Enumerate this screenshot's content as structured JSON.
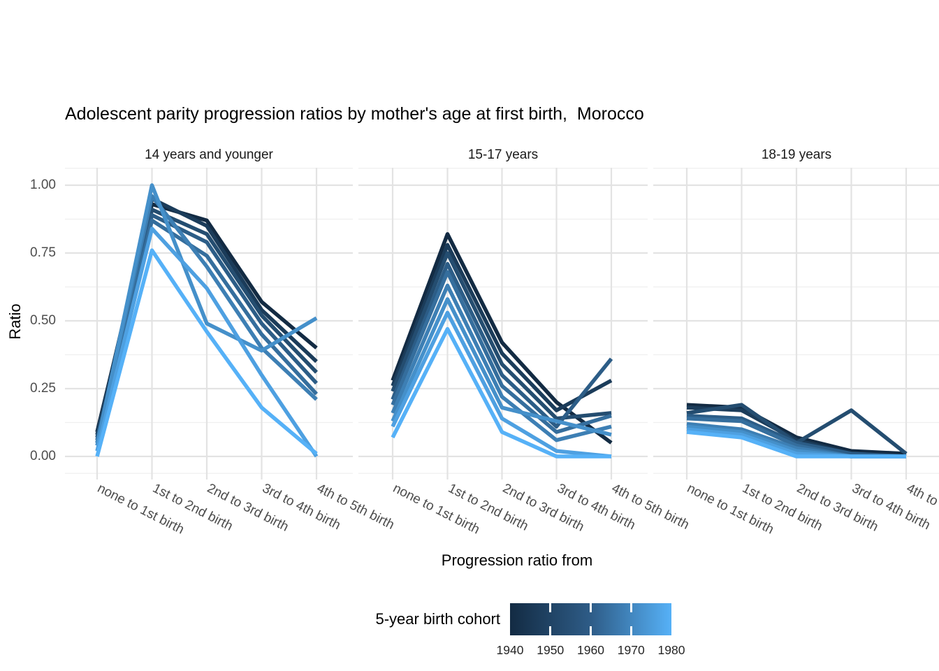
{
  "chart_data": {
    "type": "line",
    "title": "Adolescent parity progression ratios by mother's age at first birth,  Morocco",
    "xlabel": "Progression ratio from",
    "ylabel": "Ratio",
    "categories": [
      "none to 1st birth",
      "1st to 2nd birth",
      "2nd to 3rd birth",
      "3rd to 4th birth",
      "4th to 5th birth"
    ],
    "ytick_labels": [
      "0.00",
      "0.25",
      "0.50",
      "0.75",
      "1.00"
    ],
    "yticks": [
      0.0,
      0.25,
      0.5,
      0.75,
      1.0
    ],
    "ylim": [
      0,
      1
    ],
    "grid": true,
    "cohorts": [
      1940,
      1945,
      1950,
      1955,
      1960,
      1965,
      1970,
      1975,
      1980
    ],
    "facets": [
      {
        "label": "14 years and younger",
        "series": [
          {
            "cohort": 1940,
            "values": [
              0.09,
              0.93,
              0.87,
              0.57,
              0.4
            ]
          },
          {
            "cohort": 1945,
            "values": [
              0.08,
              0.95,
              0.85,
              0.54,
              0.35
            ]
          },
          {
            "cohort": 1950,
            "values": [
              0.07,
              0.91,
              0.82,
              0.52,
              0.31
            ]
          },
          {
            "cohort": 1955,
            "values": [
              0.06,
              0.89,
              0.79,
              0.49,
              0.27
            ]
          },
          {
            "cohort": 1960,
            "values": [
              0.05,
              0.87,
              0.74,
              0.45,
              0.23
            ]
          },
          {
            "cohort": 1965,
            "values": [
              0.05,
              0.96,
              0.7,
              0.4,
              0.21
            ]
          },
          {
            "cohort": 1970,
            "values": [
              0.04,
              1.0,
              0.49,
              0.39,
              0.51
            ]
          },
          {
            "cohort": 1975,
            "values": [
              0.02,
              0.84,
              0.62,
              0.3,
              0.0
            ]
          },
          {
            "cohort": 1980,
            "values": [
              0.0,
              0.76,
              0.46,
              0.18,
              0.01
            ]
          }
        ]
      },
      {
        "label": "15-17 years",
        "series": [
          {
            "cohort": 1940,
            "values": [
              0.28,
              0.82,
              0.42,
              0.2,
              0.05
            ]
          },
          {
            "cohort": 1945,
            "values": [
              0.26,
              0.78,
              0.38,
              0.17,
              0.28
            ]
          },
          {
            "cohort": 1950,
            "values": [
              0.24,
              0.75,
              0.34,
              0.14,
              0.16
            ]
          },
          {
            "cohort": 1955,
            "values": [
              0.21,
              0.71,
              0.3,
              0.11,
              0.36
            ]
          },
          {
            "cohort": 1960,
            "values": [
              0.19,
              0.68,
              0.26,
              0.09,
              0.15
            ]
          },
          {
            "cohort": 1965,
            "values": [
              0.16,
              0.63,
              0.22,
              0.06,
              0.11
            ]
          },
          {
            "cohort": 1970,
            "values": [
              0.13,
              0.58,
              0.18,
              0.13,
              0.08
            ]
          },
          {
            "cohort": 1975,
            "values": [
              0.11,
              0.53,
              0.14,
              0.02,
              0.0
            ]
          },
          {
            "cohort": 1980,
            "values": [
              0.07,
              0.47,
              0.09,
              0.0,
              0.0
            ]
          }
        ]
      },
      {
        "label": "18-19 years",
        "series": [
          {
            "cohort": 1940,
            "values": [
              0.19,
              0.18,
              0.07,
              0.02,
              0.01
            ]
          },
          {
            "cohort": 1945,
            "values": [
              0.18,
              0.17,
              0.06,
              0.01,
              0.0
            ]
          },
          {
            "cohort": 1950,
            "values": [
              0.16,
              0.19,
              0.05,
              0.17,
              0.01
            ]
          },
          {
            "cohort": 1955,
            "values": [
              0.15,
              0.14,
              0.05,
              0.01,
              0.0
            ]
          },
          {
            "cohort": 1960,
            "values": [
              0.14,
              0.13,
              0.04,
              0.0,
              0.0
            ]
          },
          {
            "cohort": 1965,
            "values": [
              0.12,
              0.1,
              0.03,
              0.0,
              0.0
            ]
          },
          {
            "cohort": 1970,
            "values": [
              0.11,
              0.09,
              0.02,
              0.0,
              0.0
            ]
          },
          {
            "cohort": 1975,
            "values": [
              0.1,
              0.08,
              0.01,
              0.0,
              0.0
            ]
          },
          {
            "cohort": 1980,
            "values": [
              0.09,
              0.07,
              0.0,
              0.0,
              0.0
            ]
          }
        ]
      }
    ],
    "legend": {
      "title": "5-year birth cohort",
      "position": "bottom",
      "type": "colorbar",
      "low_color": "#132B43",
      "mid_color": "#2e5c87",
      "high_color": "#56B1F7",
      "min": 1940,
      "max": 1980,
      "tick_labels": [
        "1940",
        "1950",
        "1960",
        "1970",
        "1980"
      ]
    },
    "colors": {
      "grid_major": "#e3e3e3",
      "grid_minor": "#efefef",
      "axis_text": "#4d4d4d",
      "text": "#000000"
    }
  }
}
